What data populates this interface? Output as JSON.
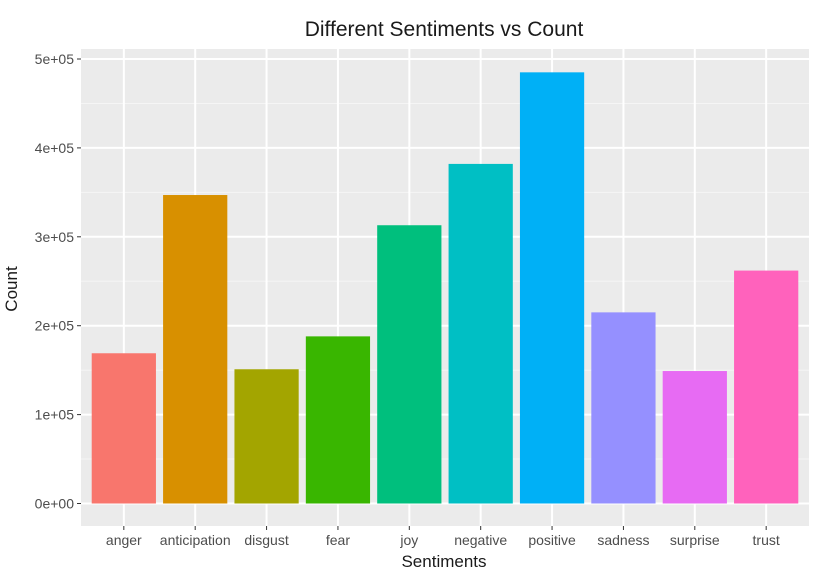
{
  "chart_data": {
    "type": "bar",
    "title": "Different Sentiments vs Count",
    "xlabel": "Sentiments",
    "ylabel": "Count",
    "categories": [
      "anger",
      "anticipation",
      "disgust",
      "fear",
      "joy",
      "negative",
      "positive",
      "sadness",
      "surprise",
      "trust"
    ],
    "values": [
      169000,
      347000,
      151000,
      188000,
      313000,
      382000,
      485000,
      215000,
      149000,
      262000
    ],
    "colors": [
      "#F8766D",
      "#D89000",
      "#A3A500",
      "#39B600",
      "#00BF7D",
      "#00BFC4",
      "#00B0F6",
      "#9590FF",
      "#E76BF3",
      "#FF62BC"
    ],
    "ylim": [
      0,
      500000
    ],
    "yticks": [
      0,
      100000,
      200000,
      300000,
      400000,
      500000
    ],
    "ytick_labels": [
      "0e+00",
      "1e+05",
      "2e+05",
      "3e+05",
      "4e+05",
      "5e+05"
    ],
    "grid": true,
    "panel_background": "#EBEBEB",
    "legend": "none"
  }
}
